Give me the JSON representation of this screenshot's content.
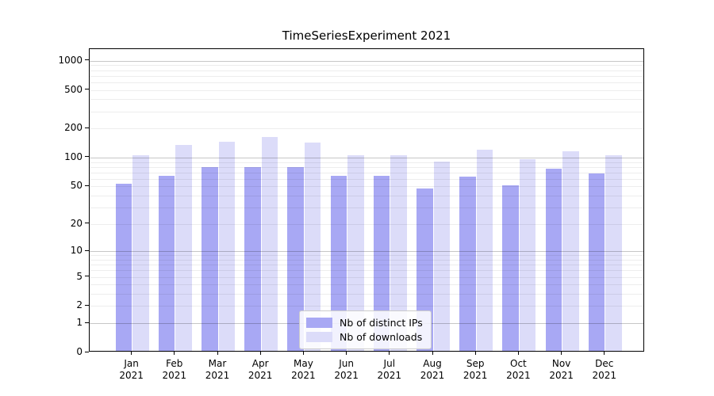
{
  "title": "TimeSeriesExperiment 2021",
  "chart_data": {
    "type": "bar",
    "title": "TimeSeriesExperiment 2021",
    "categories": [
      "Jan 2021",
      "Feb 2021",
      "Mar 2021",
      "Apr 2021",
      "May 2021",
      "Jun 2021",
      "Jul 2021",
      "Aug 2021",
      "Sep 2021",
      "Oct 2021",
      "Nov 2021",
      "Dec 2021"
    ],
    "series": [
      {
        "name": "Nb of distinct IPs",
        "color": "#a8a8f4",
        "values": [
          51,
          62,
          77,
          77,
          77,
          62,
          62,
          46,
          61,
          49,
          74,
          66
        ]
      },
      {
        "name": "Nb of downloads",
        "color": "#dcdcf9",
        "values": [
          101,
          131,
          141,
          158,
          139,
          101,
          101,
          88,
          117,
          92,
          112,
          101
        ]
      }
    ],
    "xlabel": "",
    "ylabel": "",
    "yscale": "log1p",
    "ylim": [
      0,
      1300
    ],
    "ytick_values": [
      0,
      1,
      2,
      5,
      10,
      20,
      50,
      100,
      200,
      500,
      1000
    ],
    "grid": true,
    "legend_position": "lower-center-inside"
  },
  "colors": {
    "bar_distinct_ips": "#a8a8f4",
    "bar_downloads": "#dcdcf9",
    "major_grid": "rgba(0,0,0,0.22)",
    "minor_grid": "rgba(0,0,0,0.07)",
    "spine": "#000000",
    "legend_border": "#cccccc",
    "legend_background": "rgba(255,255,255,0.85)"
  }
}
